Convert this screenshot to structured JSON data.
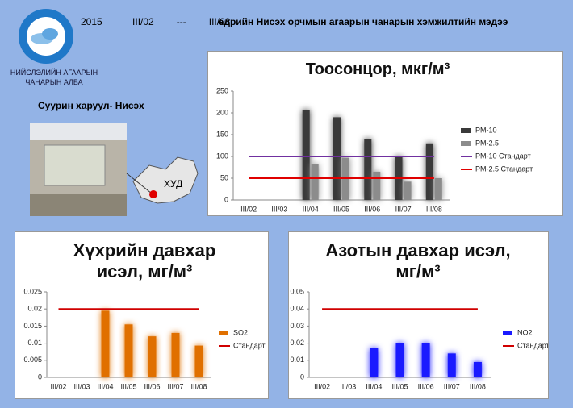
{
  "header": {
    "year": "2015",
    "from": "III/02",
    "sep": "---",
    "to": "III/08",
    "title": "өдрийн Нисэх орчмын агаарын чанарын хэмжилтийн мэдээ",
    "org_line1": "НИЙСЛЭЛИЙН АГААРЫН",
    "org_line2": "ЧАНАРЫН АЛБА",
    "station": "Суурин харуул- Нисэх",
    "map_label": "ХУД"
  },
  "chart_data": [
    {
      "type": "bar",
      "title": "Тоосонцор, мкг/м³",
      "categories": [
        "III/02",
        "III/03",
        "III/04",
        "III/05",
        "III/06",
        "III/07",
        "III/08"
      ],
      "series": [
        {
          "name": "PM-10",
          "type": "bar",
          "color": "#3a3a3a",
          "values": [
            null,
            null,
            207,
            190,
            140,
            100,
            130
          ]
        },
        {
          "name": "PM-2.5",
          "type": "bar",
          "color": "#8c8c8c",
          "values": [
            null,
            null,
            82,
            97,
            65,
            42,
            50
          ]
        },
        {
          "name": "PM-10 Стандарт",
          "type": "line",
          "color": "#7030a0",
          "values": [
            100,
            100,
            100,
            100,
            100,
            100,
            100
          ]
        },
        {
          "name": "PM-2.5 Стандарт",
          "type": "line",
          "color": "#e00000",
          "values": [
            50,
            50,
            50,
            50,
            50,
            50,
            50
          ]
        }
      ],
      "ylim": [
        0,
        250
      ],
      "yticks": [
        0,
        50,
        100,
        150,
        200,
        250
      ]
    },
    {
      "type": "bar",
      "title": "Хүхрийн давхар исэл, мг/м³",
      "categories": [
        "III/02",
        "III/03",
        "III/04",
        "III/05",
        "III/06",
        "III/07",
        "III/08"
      ],
      "series": [
        {
          "name": "SO2",
          "type": "bar",
          "color": "#e07000",
          "values": [
            null,
            null,
            0.0195,
            0.0155,
            0.012,
            0.013,
            0.0093
          ]
        },
        {
          "name": "Стандарт",
          "type": "line",
          "color": "#d00000",
          "values": [
            0.02,
            0.02,
            0.02,
            0.02,
            0.02,
            0.02,
            0.02
          ]
        }
      ],
      "ylim": [
        0,
        0.025
      ],
      "yticks": [
        0,
        0.005,
        0.01,
        0.015,
        0.02,
        0.025
      ]
    },
    {
      "type": "bar",
      "title": "Азотын давхар исэл, мг/м³",
      "categories": [
        "III/02",
        "III/03",
        "III/04",
        "III/05",
        "III/06",
        "III/07",
        "III/08"
      ],
      "series": [
        {
          "name": "NO2",
          "type": "bar",
          "color": "#1a1aff",
          "values": [
            null,
            null,
            0.017,
            0.02,
            0.02,
            0.014,
            0.009
          ]
        },
        {
          "name": "Стандарт",
          "type": "line",
          "color": "#d00000",
          "values": [
            0.04,
            0.04,
            0.04,
            0.04,
            0.04,
            0.04,
            0.04
          ]
        }
      ],
      "ylim": [
        0,
        0.05
      ],
      "yticks": [
        0,
        0.01,
        0.02,
        0.03,
        0.04,
        0.05
      ]
    }
  ]
}
